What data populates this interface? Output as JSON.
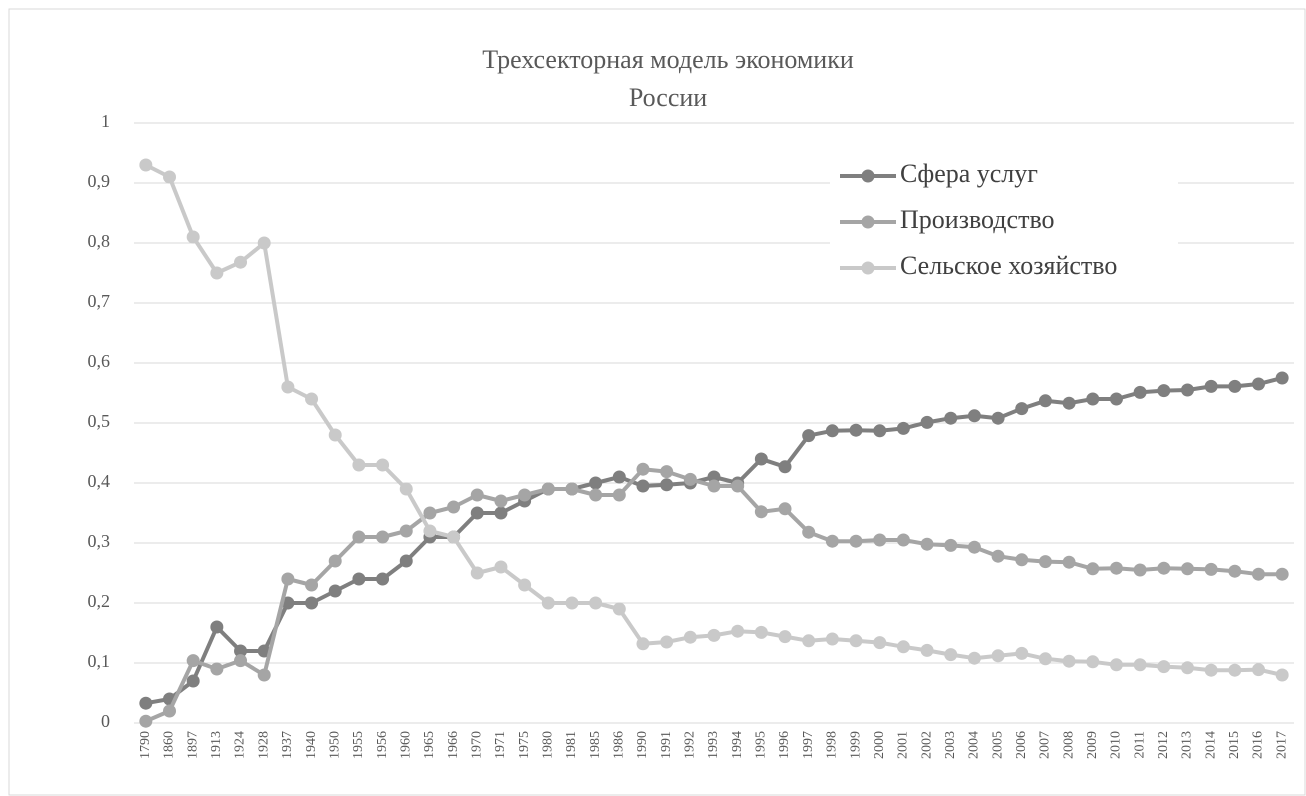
{
  "chart_data": {
    "type": "line",
    "title": [
      "Трехсекторная модель экономики",
      "России"
    ],
    "categories": [
      "1790",
      "1860",
      "1897",
      "1913",
      "1924",
      "1928",
      "1937",
      "1940",
      "1950",
      "1955",
      "1956",
      "1960",
      "1965",
      "1966",
      "1970",
      "1971",
      "1975",
      "1980",
      "1981",
      "1985",
      "1986",
      "1990",
      "1991",
      "1992",
      "1993",
      "1994",
      "1995",
      "1996",
      "1997",
      "1998",
      "1999",
      "2000",
      "2001",
      "2002",
      "2003",
      "2004",
      "2005",
      "2006",
      "2007",
      "2008",
      "2009",
      "2010",
      "2011",
      "2012",
      "2013",
      "2014",
      "2015",
      "2016",
      "2017"
    ],
    "series": [
      {
        "name": "Сфера услуг",
        "color": "#7f7f7f",
        "values": [
          0.033,
          0.04,
          0.07,
          0.16,
          0.12,
          0.12,
          0.2,
          0.2,
          0.22,
          0.24,
          0.24,
          0.27,
          0.31,
          0.31,
          0.35,
          0.35,
          0.37,
          0.39,
          0.39,
          0.4,
          0.41,
          0.395,
          0.397,
          0.4,
          0.41,
          0.4,
          0.44,
          0.427,
          0.479,
          0.487,
          0.488,
          0.487,
          0.491,
          0.501,
          0.508,
          0.512,
          0.508,
          0.524,
          0.537,
          0.533,
          0.54,
          0.54,
          0.551,
          0.554,
          0.555,
          0.561,
          0.561,
          0.565,
          0.575
        ]
      },
      {
        "name": "Производство",
        "color": "#a5a5a5",
        "values": [
          0.003,
          0.02,
          0.104,
          0.09,
          0.104,
          0.08,
          0.24,
          0.23,
          0.27,
          0.31,
          0.31,
          0.32,
          0.35,
          0.36,
          0.38,
          0.37,
          0.38,
          0.39,
          0.39,
          0.38,
          0.38,
          0.423,
          0.419,
          0.406,
          0.395,
          0.395,
          0.352,
          0.357,
          0.318,
          0.303,
          0.303,
          0.305,
          0.305,
          0.298,
          0.296,
          0.293,
          0.278,
          0.272,
          0.269,
          0.268,
          0.257,
          0.258,
          0.255,
          0.258,
          0.257,
          0.256,
          0.253,
          0.248,
          0.248
        ]
      },
      {
        "name": "Сельское хозяйство",
        "color": "#c9c9c9",
        "values": [
          0.93,
          0.91,
          0.81,
          0.75,
          0.768,
          0.8,
          0.56,
          0.54,
          0.48,
          0.43,
          0.43,
          0.39,
          0.32,
          0.31,
          0.25,
          0.26,
          0.23,
          0.2,
          0.2,
          0.2,
          0.19,
          0.132,
          0.135,
          0.143,
          0.146,
          0.153,
          0.151,
          0.144,
          0.137,
          0.14,
          0.137,
          0.134,
          0.127,
          0.121,
          0.114,
          0.108,
          0.112,
          0.116,
          0.107,
          0.103,
          0.102,
          0.097,
          0.097,
          0.094,
          0.092,
          0.088,
          0.088,
          0.089,
          0.08
        ]
      }
    ],
    "ylim": [
      0,
      1
    ],
    "yticks": [
      0,
      {
        "value": 0.1,
        "label": "0,1"
      },
      {
        "value": 0.2,
        "label": "0,2"
      },
      {
        "value": 0.3,
        "label": "0,3"
      },
      {
        "value": 0.4,
        "label": "0,4"
      },
      {
        "value": 0.5,
        "label": "0,5"
      },
      {
        "value": 0.6,
        "label": "0,6"
      },
      {
        "value": 0.7,
        "label": "0,7"
      },
      {
        "value": 0.8,
        "label": "0,8"
      },
      {
        "value": 0.9,
        "label": "0,9"
      },
      1
    ],
    "grid": true,
    "legend": "upper right"
  }
}
